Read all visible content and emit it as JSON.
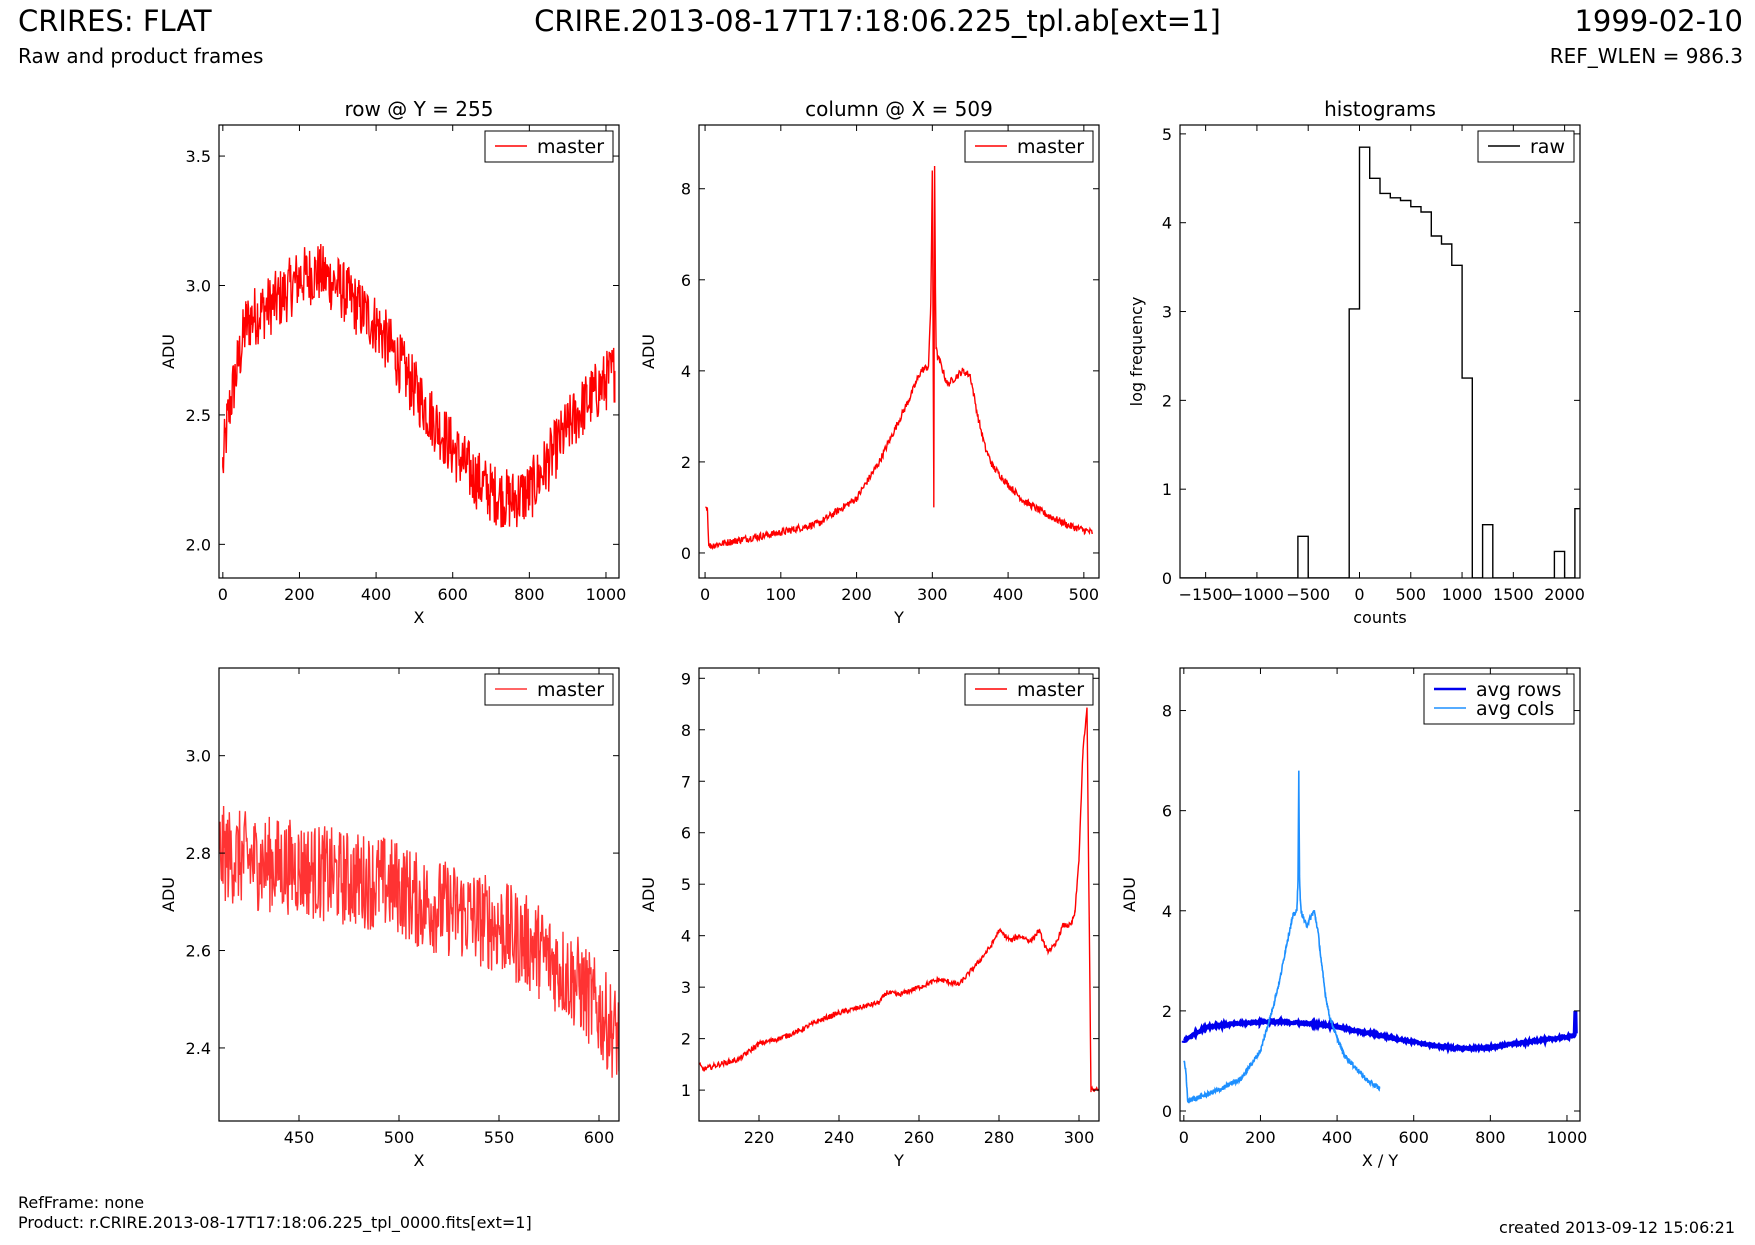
{
  "header": {
    "title_left": "CRIRES: FLAT",
    "subtitle_left": "Raw and product frames",
    "title_center": "CRIRE.2013-08-17T17:18:06.225_tpl.ab[ext=1]",
    "title_right": "1999-02-10",
    "subtitle_right": "REF_WLEN = 986.3"
  },
  "footer": {
    "ref_frame": "RefFrame: none",
    "product": "Product: r.CRIRE.2013-08-17T17:18:06.225_tpl_0000.fits[ext=1]",
    "created": "created 2013-09-12 15:06:21"
  },
  "chart_data": [
    {
      "type": "line",
      "title": "row @ Y = 255",
      "xlabel": "X",
      "ylabel": "ADU",
      "xlim": [
        -10,
        1034
      ],
      "ylim": [
        1.87,
        3.62
      ],
      "xticks": [
        0,
        200,
        400,
        600,
        800,
        1000
      ],
      "yticks": [
        2.0,
        2.5,
        3.0,
        3.5
      ],
      "ytick_labels": [
        "2.0",
        "2.5",
        "3.0",
        "3.5"
      ],
      "legend": "top-right",
      "series": [
        {
          "name": "master",
          "color": "#ff0000",
          "noise": 0.12,
          "x": [
            0,
            10,
            20,
            40,
            60,
            80,
            100,
            150,
            200,
            250,
            300,
            350,
            400,
            450,
            500,
            550,
            600,
            650,
            700,
            750,
            800,
            850,
            900,
            950,
            1000,
            1023
          ],
          "y": [
            2.3,
            2.45,
            2.55,
            2.7,
            2.85,
            2.88,
            2.9,
            2.95,
            3.03,
            3.05,
            3.0,
            2.92,
            2.85,
            2.73,
            2.6,
            2.48,
            2.37,
            2.27,
            2.2,
            2.17,
            2.2,
            2.32,
            2.45,
            2.55,
            2.63,
            2.67
          ]
        }
      ]
    },
    {
      "type": "line",
      "title": "column @ X = 509",
      "xlabel": "Y",
      "ylabel": "ADU",
      "xlim": [
        -8,
        520
      ],
      "ylim": [
        -0.55,
        9.4
      ],
      "xticks": [
        0,
        100,
        200,
        300,
        400,
        500
      ],
      "yticks": [
        0,
        2,
        4,
        6,
        8
      ],
      "legend": "top-right",
      "series": [
        {
          "name": "master",
          "color": "#ff0000",
          "noise": 0.08,
          "x": [
            1,
            3,
            5,
            50,
            100,
            150,
            200,
            230,
            250,
            270,
            285,
            295,
            298,
            300,
            302,
            303,
            304,
            305,
            307,
            310,
            320,
            340,
            350,
            360,
            370,
            380,
            400,
            420,
            450,
            480,
            511
          ],
          "y": [
            1.0,
            1.0,
            0.15,
            0.3,
            0.45,
            0.65,
            1.2,
            2.0,
            2.7,
            3.4,
            4.0,
            4.1,
            5.5,
            8.4,
            1.0,
            8.5,
            6.0,
            4.5,
            4.3,
            4.2,
            3.7,
            4.0,
            3.9,
            3.0,
            2.3,
            1.9,
            1.5,
            1.15,
            0.85,
            0.6,
            0.45
          ]
        }
      ]
    },
    {
      "type": "histogram",
      "title": "histograms",
      "xlabel": "counts",
      "ylabel": "log frequency",
      "xlim": [
        -1750,
        2150
      ],
      "ylim": [
        0,
        5.1
      ],
      "xticks": [
        -1500,
        -1000,
        -500,
        0,
        500,
        1000,
        1500,
        2000
      ],
      "xtick_labels": [
        "−1500",
        "−1000",
        "−500",
        "0",
        "500",
        "1000",
        "1500",
        "2000"
      ],
      "yticks": [
        0,
        1,
        2,
        3,
        4,
        5
      ],
      "legend": "top-right",
      "series": [
        {
          "name": "raw",
          "color": "#000000",
          "x": [
            -1750,
            -600,
            -500,
            -400,
            -100,
            0,
            100,
            200,
            300,
            400,
            500,
            600,
            700,
            800,
            900,
            1000,
            1100,
            1200,
            1300,
            1900,
            2000,
            2100,
            2150
          ],
          "y": [
            0,
            0.47,
            0,
            0,
            3.03,
            4.85,
            4.5,
            4.33,
            4.28,
            4.25,
            4.18,
            4.12,
            3.85,
            3.76,
            3.52,
            2.25,
            0,
            0.6,
            0,
            0.3,
            0,
            0.78,
            0.78
          ]
        }
      ]
    },
    {
      "type": "line",
      "title": "",
      "xlabel": "X",
      "ylabel": "ADU",
      "xlim": [
        410,
        610
      ],
      "ylim": [
        2.25,
        3.18
      ],
      "xticks": [
        450,
        500,
        550,
        600
      ],
      "yticks": [
        2.4,
        2.6,
        2.8,
        3.0
      ],
      "ytick_labels": [
        "2.4",
        "2.6",
        "2.8",
        "3.0"
      ],
      "legend": "top-right",
      "series": [
        {
          "name": "master",
          "color": "#ff3333",
          "noise": 0.1,
          "x": [
            410,
            430,
            450,
            470,
            490,
            500,
            510,
            530,
            550,
            570,
            590,
            610
          ],
          "y": [
            2.8,
            2.78,
            2.77,
            2.75,
            2.74,
            2.73,
            2.7,
            2.68,
            2.65,
            2.6,
            2.53,
            2.42
          ]
        }
      ]
    },
    {
      "type": "line",
      "title": "",
      "xlabel": "Y",
      "ylabel": "ADU",
      "xlim": [
        205,
        305
      ],
      "ylim": [
        0.4,
        9.2
      ],
      "xticks": [
        220,
        240,
        260,
        280,
        300
      ],
      "yticks": [
        1,
        2,
        3,
        4,
        5,
        6,
        7,
        8,
        9
      ],
      "legend": "top-right",
      "series": [
        {
          "name": "master",
          "color": "#ff0000",
          "noise": 0.05,
          "x": [
            205,
            206,
            210,
            215,
            220,
            225,
            230,
            235,
            240,
            245,
            250,
            252,
            255,
            260,
            265,
            270,
            275,
            278,
            280,
            283,
            285,
            288,
            290,
            292,
            294,
            296,
            298,
            299,
            300,
            301,
            302,
            303,
            304,
            305
          ],
          "y": [
            1.5,
            1.4,
            1.5,
            1.6,
            1.9,
            2.0,
            2.15,
            2.35,
            2.5,
            2.6,
            2.7,
            2.9,
            2.85,
            3.0,
            3.15,
            3.05,
            3.5,
            3.8,
            4.1,
            3.9,
            4.0,
            3.9,
            4.1,
            3.7,
            3.8,
            4.2,
            4.2,
            4.45,
            5.5,
            7.6,
            8.4,
            1.0,
            1.0,
            1.0
          ]
        }
      ]
    },
    {
      "type": "line",
      "title": "",
      "xlabel": "X / Y",
      "ylabel": "ADU",
      "xlim": [
        -10,
        1034
      ],
      "ylim": [
        -0.2,
        8.85
      ],
      "xticks": [
        0,
        200,
        400,
        600,
        800,
        1000
      ],
      "yticks": [
        0,
        2,
        4,
        6,
        8
      ],
      "legend": "top-right",
      "series": [
        {
          "name": "avg rows",
          "color": "#0000ee",
          "noise": 0.02,
          "width": 4,
          "x": [
            0,
            30,
            60,
            100,
            150,
            200,
            250,
            300,
            350,
            400,
            450,
            500,
            550,
            600,
            650,
            700,
            750,
            800,
            850,
            900,
            950,
            1000,
            1020,
            1022,
            1023
          ],
          "y": [
            1.4,
            1.55,
            1.68,
            1.72,
            1.75,
            1.78,
            1.78,
            1.76,
            1.73,
            1.68,
            1.6,
            1.53,
            1.45,
            1.38,
            1.31,
            1.26,
            1.25,
            1.27,
            1.33,
            1.38,
            1.43,
            1.48,
            1.52,
            2.0,
            1.55
          ]
        },
        {
          "name": "avg cols",
          "color": "#1e90ff",
          "noise": 0.05,
          "width": 1.6,
          "x": [
            1,
            5,
            10,
            50,
            100,
            150,
            200,
            230,
            250,
            270,
            285,
            295,
            298,
            300,
            302,
            304,
            306,
            310,
            320,
            340,
            350,
            360,
            370,
            380,
            400,
            420,
            450,
            480,
            511
          ],
          "y": [
            1.0,
            0.8,
            0.2,
            0.3,
            0.45,
            0.65,
            1.2,
            2.0,
            2.6,
            3.4,
            3.9,
            4.0,
            4.6,
            6.8,
            4.7,
            4.2,
            4.0,
            3.9,
            3.7,
            4.0,
            3.6,
            2.9,
            2.3,
            1.9,
            1.45,
            1.1,
            0.85,
            0.6,
            0.45
          ]
        }
      ]
    }
  ]
}
